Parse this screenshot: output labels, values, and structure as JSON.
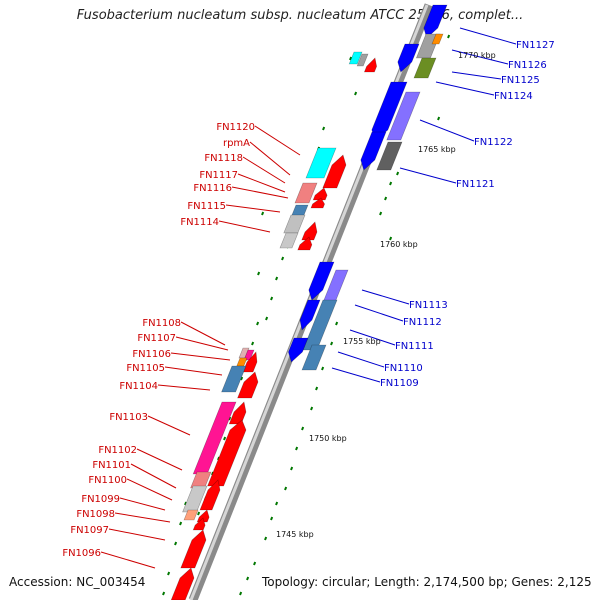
{
  "title": "Fusobacterium nucleatum subsp. nucleatum ATCC 25586, complet...",
  "accession": "Accession: NC_003454",
  "topology": "Topology: circular; Length: 2,174,500 bp; Genes: 2,125",
  "colors": {
    "backbone_dark": "#8a8a8a",
    "backbone_light": "#d6d6d6",
    "forward_gene": "#ff0000",
    "reverse_gene": "#0000ff",
    "label_forward": "#cc0000",
    "label_reverse": "#0000cc",
    "tick": "#007700",
    "cyan": "#00ffff",
    "pink": "#ff3399",
    "magenta": "#ff1493",
    "steelblue": "#4682b4",
    "grey": "#a0a0a0",
    "olive": "#6b8e23",
    "purple": "#8470ff"
  },
  "scale_labels": [
    "1770 kbp",
    "1765 kbp",
    "1760 kbp",
    "1755 kbp",
    "1750 kbp",
    "1745 kbp"
  ],
  "genes_forward": [
    "FN1120",
    "rpmA",
    "FN1118",
    "FN1117",
    "FN1116",
    "FN1115",
    "FN1114",
    "FN1108",
    "FN1107",
    "FN1106",
    "FN1105",
    "FN1104",
    "FN1103",
    "FN1102",
    "FN1101",
    "FN1100",
    "FN1099",
    "FN1098",
    "FN1097",
    "FN1096"
  ],
  "genes_reverse": [
    "FN1127",
    "FN1126",
    "FN1125",
    "FN1124",
    "FN1122",
    "FN1121",
    "FN1113",
    "FN1112",
    "FN1111",
    "FN1110",
    "FN1109"
  ]
}
